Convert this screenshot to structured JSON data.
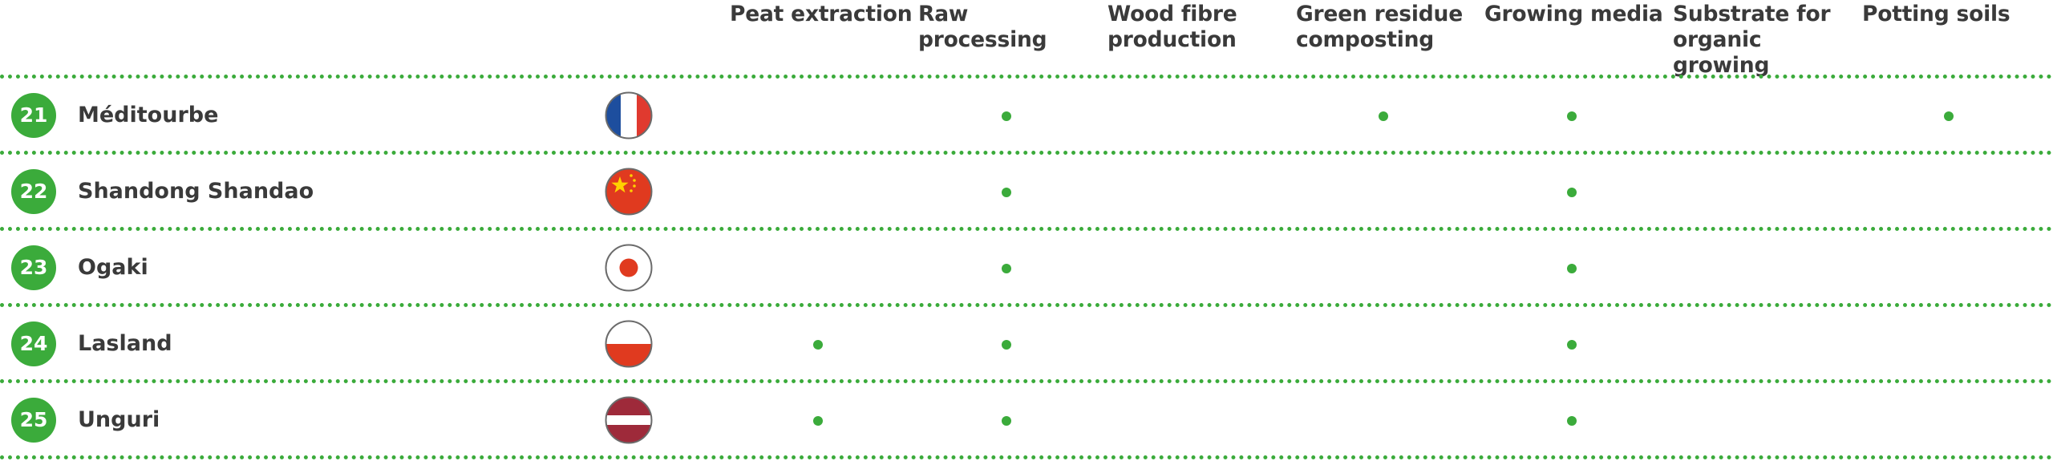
{
  "columns": [
    "Peat extraction",
    "Raw processing",
    "Wood fibre\nproduction",
    "Green residue\ncomposting",
    "Growing media",
    "Substrate for\norganic growing",
    "Potting soils"
  ],
  "rows": [
    {
      "number": "21",
      "name": "Méditourbe",
      "country": "France",
      "marks": [
        false,
        true,
        false,
        true,
        true,
        false,
        true
      ]
    },
    {
      "number": "22",
      "name": "Shandong Shandao",
      "country": "China",
      "marks": [
        false,
        true,
        false,
        false,
        true,
        false,
        false
      ]
    },
    {
      "number": "23",
      "name": "Ogaki",
      "country": "Japan",
      "marks": [
        false,
        true,
        false,
        false,
        true,
        false,
        false
      ]
    },
    {
      "number": "24",
      "name": "Lasland",
      "country": "Poland",
      "marks": [
        true,
        true,
        false,
        false,
        true,
        false,
        false
      ]
    },
    {
      "number": "25",
      "name": "Unguri",
      "country": "Latvia",
      "marks": [
        true,
        true,
        false,
        false,
        true,
        false,
        false
      ]
    }
  ],
  "colors": {
    "accent": "#3bab3b",
    "text": "#3a3a3a"
  }
}
